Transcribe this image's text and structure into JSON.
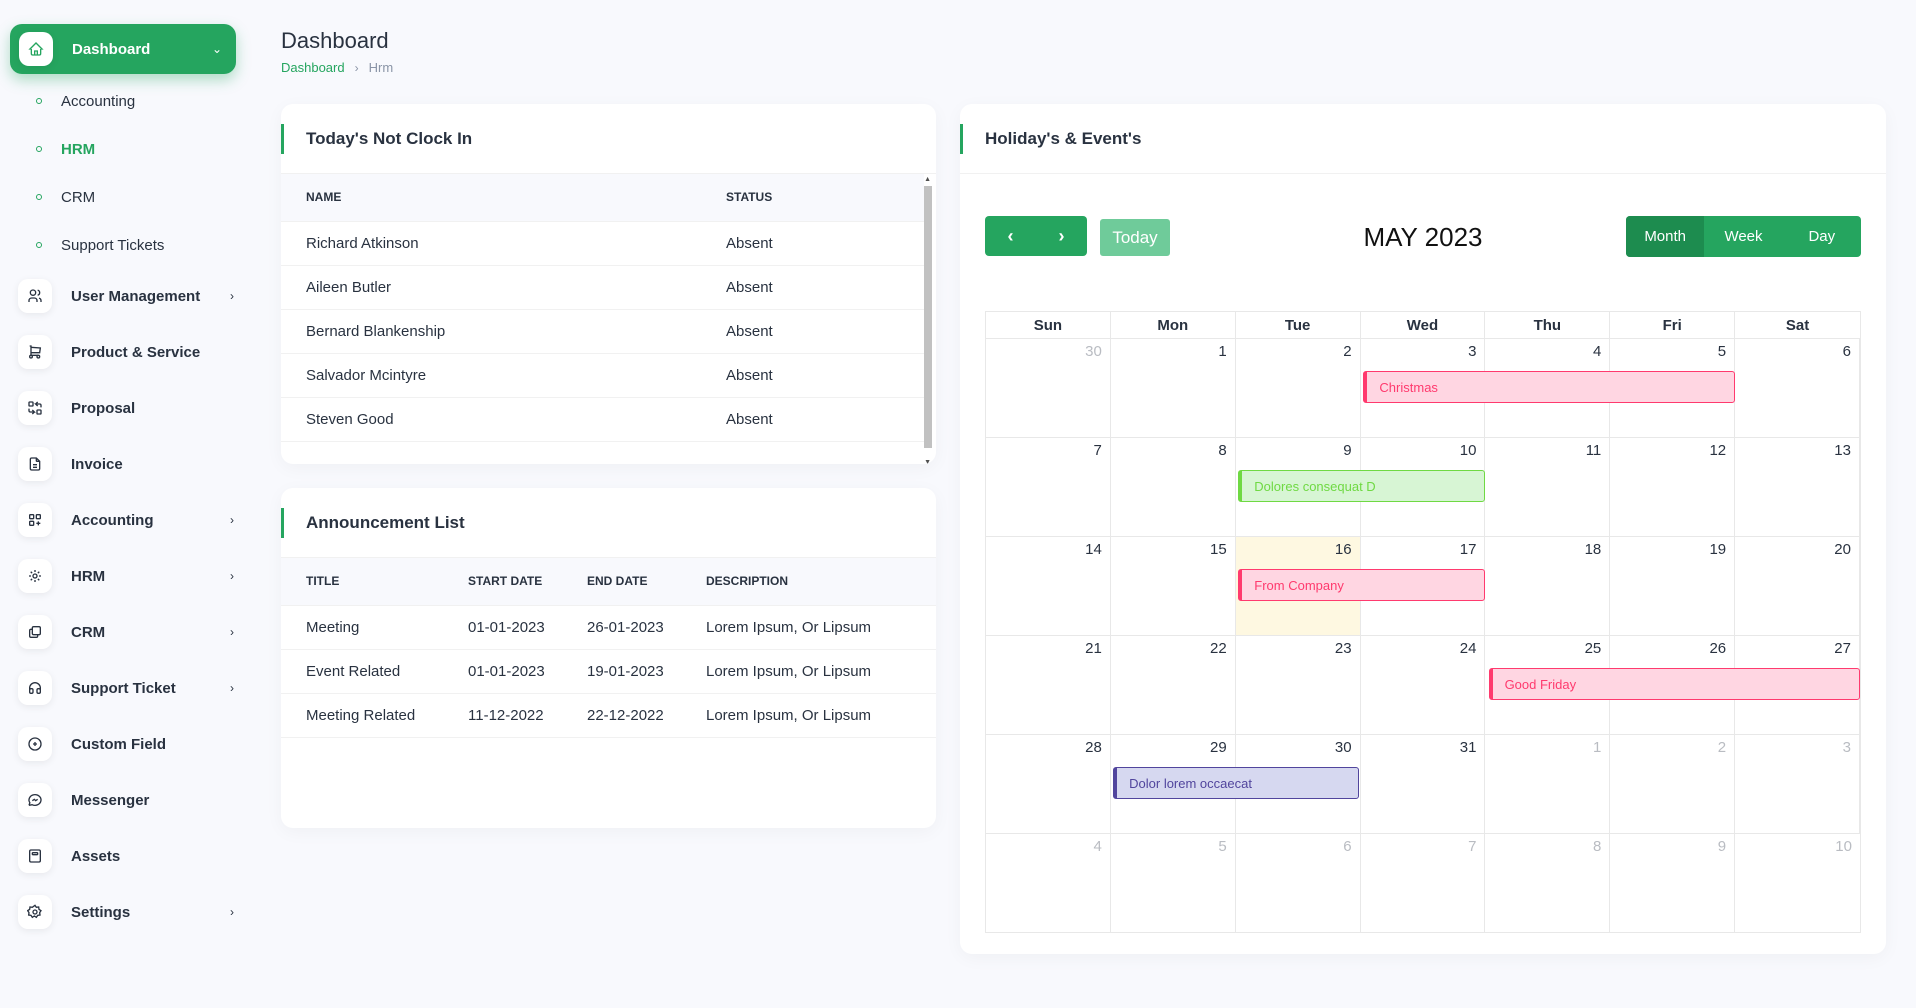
{
  "sidebar": {
    "active": {
      "label": "Dashboard"
    },
    "sub_items": [
      "Accounting",
      "HRM",
      "CRM",
      "Support Tickets"
    ],
    "items": [
      {
        "label": "User Management",
        "icon": "users-icon",
        "chevron": true
      },
      {
        "label": "Product & Service",
        "icon": "cart-icon",
        "chevron": false
      },
      {
        "label": "Proposal",
        "icon": "replace-icon",
        "chevron": false
      },
      {
        "label": "Invoice",
        "icon": "file-invoice-icon",
        "chevron": false
      },
      {
        "label": "Accounting",
        "icon": "layout-grid-add-icon",
        "chevron": true
      },
      {
        "label": "HRM",
        "icon": "chart-dots-icon",
        "chevron": true
      },
      {
        "label": "CRM",
        "icon": "layers-difference-icon",
        "chevron": true
      },
      {
        "label": "Support Ticket",
        "icon": "headphones-icon",
        "chevron": true
      },
      {
        "label": "Custom Field",
        "icon": "circle-plus-icon",
        "chevron": false
      },
      {
        "label": "Messenger",
        "icon": "brand-messenger-icon",
        "chevron": false
      },
      {
        "label": "Assets",
        "icon": "calculator-icon",
        "chevron": false
      },
      {
        "label": "Settings",
        "icon": "settings-icon",
        "chevron": true
      }
    ]
  },
  "header": {
    "title": "Dashboard",
    "breadcrumb": {
      "home": "Dashboard",
      "current": "Hrm"
    }
  },
  "clock_in": {
    "title": "Today's Not Clock In",
    "columns": [
      "NAME",
      "STATUS"
    ],
    "rows": [
      {
        "name": "Richard Atkinson",
        "status": "Absent"
      },
      {
        "name": "Aileen Butler",
        "status": "Absent"
      },
      {
        "name": "Bernard Blankenship",
        "status": "Absent"
      },
      {
        "name": "Salvador Mcintyre",
        "status": "Absent"
      },
      {
        "name": "Steven Good",
        "status": "Absent"
      }
    ]
  },
  "announcements": {
    "title": "Announcement List",
    "columns": [
      "TITLE",
      "START DATE",
      "END DATE",
      "DESCRIPTION"
    ],
    "rows": [
      {
        "title": "Meeting",
        "start": "01-01-2023",
        "end": "26-01-2023",
        "desc": "Lorem Ipsum, Or Lipsum"
      },
      {
        "title": "Event Related",
        "start": "01-01-2023",
        "end": "19-01-2023",
        "desc": "Lorem Ipsum, Or Lipsum"
      },
      {
        "title": "Meeting Related",
        "start": "11-12-2022",
        "end": "22-12-2022",
        "desc": "Lorem Ipsum, Or Lipsum"
      }
    ]
  },
  "calendar": {
    "title": "Holiday's & Event's",
    "today_label": "Today",
    "month_label": "MAY 2023",
    "views": [
      "Month",
      "Week",
      "Day"
    ],
    "active_view": "Month",
    "weekdays": [
      "Sun",
      "Mon",
      "Tue",
      "Wed",
      "Thu",
      "Fri",
      "Sat"
    ],
    "weeks": [
      [
        {
          "n": "30",
          "o": true
        },
        {
          "n": "1"
        },
        {
          "n": "2"
        },
        {
          "n": "3"
        },
        {
          "n": "4"
        },
        {
          "n": "5"
        },
        {
          "n": "6"
        }
      ],
      [
        {
          "n": "7"
        },
        {
          "n": "8"
        },
        {
          "n": "9"
        },
        {
          "n": "10"
        },
        {
          "n": "11"
        },
        {
          "n": "12"
        },
        {
          "n": "13"
        }
      ],
      [
        {
          "n": "14"
        },
        {
          "n": "15"
        },
        {
          "n": "16",
          "t": true
        },
        {
          "n": "17"
        },
        {
          "n": "18"
        },
        {
          "n": "19"
        },
        {
          "n": "20"
        }
      ],
      [
        {
          "n": "21"
        },
        {
          "n": "22"
        },
        {
          "n": "23"
        },
        {
          "n": "24"
        },
        {
          "n": "25"
        },
        {
          "n": "26"
        },
        {
          "n": "27"
        }
      ],
      [
        {
          "n": "28"
        },
        {
          "n": "29"
        },
        {
          "n": "30"
        },
        {
          "n": "31"
        },
        {
          "n": "1",
          "o": true
        },
        {
          "n": "2",
          "o": true
        },
        {
          "n": "3",
          "o": true
        }
      ],
      [
        {
          "n": "4",
          "o": true
        },
        {
          "n": "5",
          "o": true
        },
        {
          "n": "6",
          "o": true
        },
        {
          "n": "7",
          "o": true
        },
        {
          "n": "8",
          "o": true
        },
        {
          "n": "9",
          "o": true
        },
        {
          "n": "10",
          "o": true
        }
      ]
    ],
    "events": [
      {
        "title": "Christmas",
        "week": 0,
        "start_day": 3,
        "end_day": 5,
        "color": "pink"
      },
      {
        "title": "Dolores consequat D",
        "week": 1,
        "start_day": 2,
        "end_day": 3,
        "color": "green"
      },
      {
        "title": "From Company",
        "week": 2,
        "start_day": 2,
        "end_day": 3,
        "color": "pink"
      },
      {
        "title": "Good Friday",
        "week": 3,
        "start_day": 4,
        "end_day": 6,
        "color": "pink"
      },
      {
        "title": "Dolor lorem occaecat",
        "week": 4,
        "start_day": 1,
        "end_day": 2,
        "color": "purple"
      }
    ]
  },
  "colors": {
    "primary": "#25a55f",
    "pink": "#ff3a6e",
    "green": "#6fd943",
    "purple": "#51459d"
  }
}
